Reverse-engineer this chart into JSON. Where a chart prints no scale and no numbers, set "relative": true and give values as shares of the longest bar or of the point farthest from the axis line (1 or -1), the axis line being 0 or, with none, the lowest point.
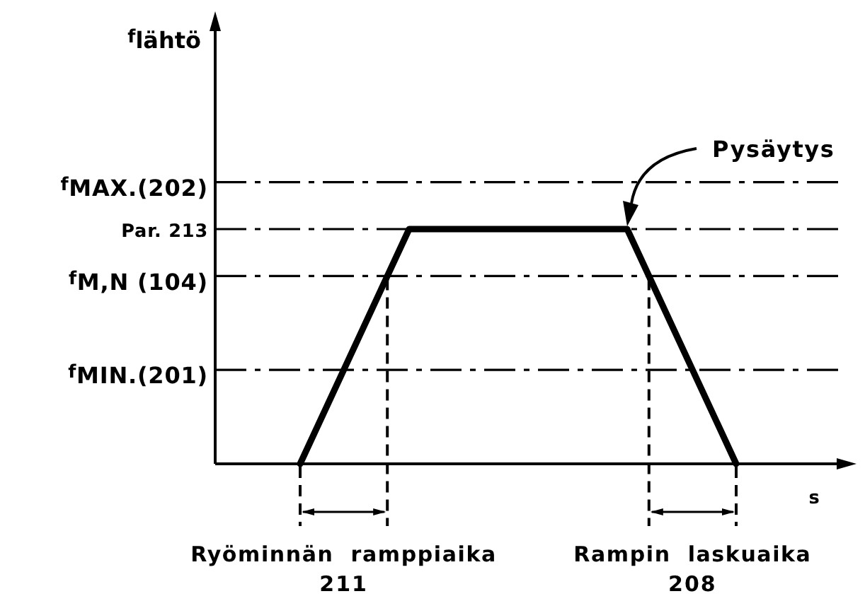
{
  "chart_data": {
    "type": "line",
    "relative": true,
    "xlabel": "s",
    "categories": [
      null,
      null,
      null,
      null,
      null
    ],
    "series": [
      {
        "color": "#000000",
        "values": [
          0,
          1,
          1,
          1,
          0
        ]
      }
    ],
    "ref_lines": [
      {
        "axis": "y",
        "value": 1.2,
        "label": "f$_{MAX.(202)}$",
        "line_style": "dashdot",
        "color": "#000000"
      },
      {
        "axis": "y",
        "value": 1,
        "label": "Par. 213",
        "line_style": "dashdot",
        "color": "#000000"
      },
      {
        "axis": "y",
        "value": 0.8,
        "label": "f$_{M,N (104)}$",
        "line_style": "dashdot",
        "color": "#000000"
      },
      {
        "axis": "y",
        "value": 0.4,
        "label": "f$_{MIN.(201)}$",
        "line_style": "dashdot",
        "color": "#000000"
      }
    ],
    "annotations": [
      "f$_{lähtö}$",
      {
        "text": "Pysäytys",
        "y": 1
      },
      "Ryöminnän ramppiaika\n211",
      "Rampin laskuaika\n208"
    ]
  }
}
